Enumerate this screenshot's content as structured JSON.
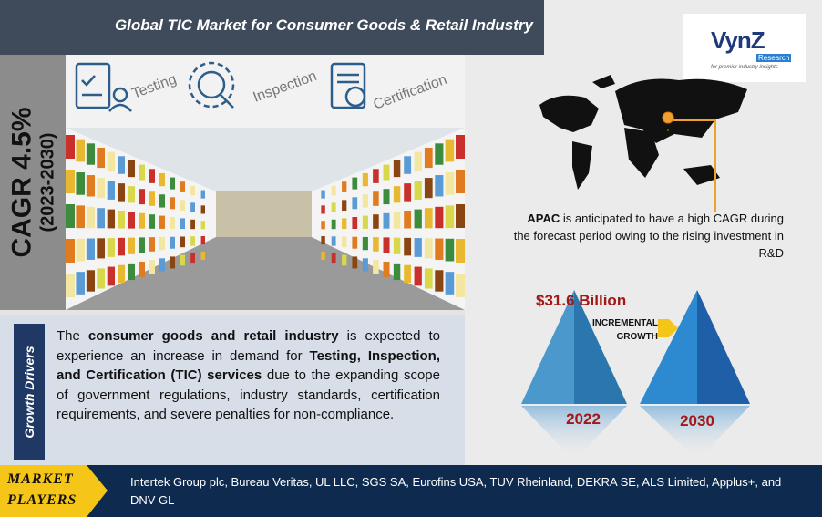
{
  "header": {
    "title": "Global TIC Market for Consumer Goods & Retail Industry"
  },
  "logo": {
    "brand": "VynZ",
    "sub": "Research",
    "tagline": "for premier industry insights"
  },
  "cagr": {
    "value": "CAGR 4.5%",
    "period": "(2023-2030)"
  },
  "services": [
    "Testing",
    "Inspection",
    "Certification"
  ],
  "regional": {
    "parts": [
      "APAC",
      " is anticipated to have a high CAGR during the forecast period owing to the rising investment in R&D"
    ]
  },
  "growth": {
    "amount": "$31.6 Billion",
    "label": "INCREMENTAL GROWTH",
    "start_year": "2022",
    "end_year": "2030"
  },
  "drivers": {
    "heading": "Growth Drivers",
    "parts": [
      "The ",
      "consumer goods and retail industry",
      " is expected to experience an increase in demand for ",
      "Testing, Inspection, and Certification (TIC) services",
      " due to the expanding scope of government regulations, industry standards, certification requirements, and severe penalties for non-compliance."
    ]
  },
  "players": {
    "heading": "MARKET PLAYERS",
    "list": "Intertek Group plc, Bureau Veritas, UL LLC, SGS SA, Eurofins USA, TUV Rheinland, DEKRA SE, ALS Limited, Applus+, and DNV GL"
  }
}
